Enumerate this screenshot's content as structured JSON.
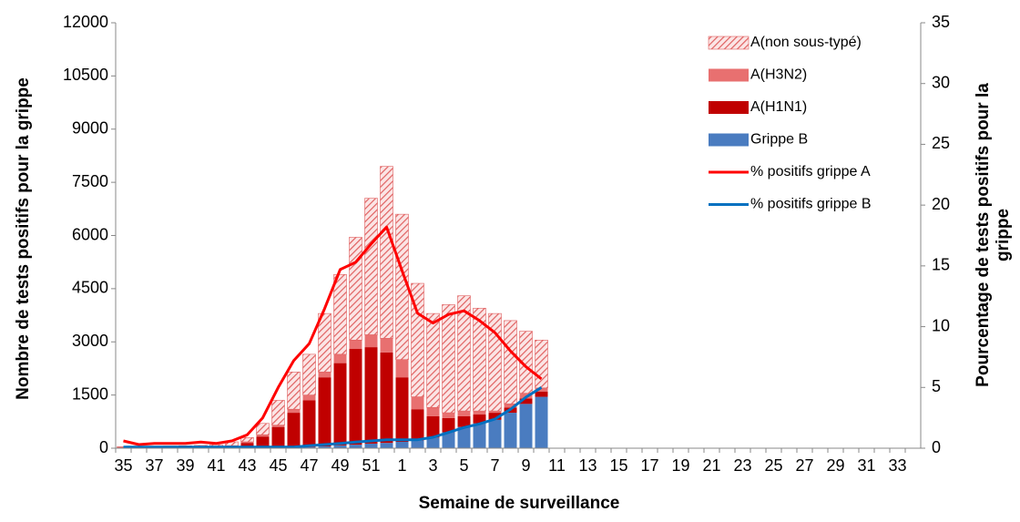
{
  "chart_data": {
    "type": "bar",
    "xlabel": "Semaine de surveillance",
    "ylabel": "Nombre de tests positifs pour la grippe",
    "y2label": [
      "Pourcentage de tests positifs pour la",
      "grippe"
    ],
    "categories": [
      "35",
      null,
      "37",
      null,
      "39",
      null,
      "41",
      null,
      "43",
      null,
      "45",
      null,
      "47",
      null,
      "49",
      null,
      "51",
      null,
      "1",
      null,
      "3",
      null,
      "5",
      null,
      "7",
      null,
      "9",
      null,
      "11",
      null,
      "13",
      null,
      "15",
      null,
      "17",
      null,
      "19",
      null,
      "21",
      null,
      "23",
      null,
      "25",
      null,
      "27",
      null,
      "29",
      null,
      "31",
      null,
      "33",
      null
    ],
    "ylim": [
      0,
      12000
    ],
    "yticks": [
      0,
      1500,
      3000,
      4500,
      6000,
      7500,
      9000,
      10500,
      12000
    ],
    "y2lim": [
      0,
      35
    ],
    "y2ticks": [
      0,
      5,
      10,
      15,
      20,
      25,
      30,
      35
    ],
    "legend_position": "upper right",
    "series": [
      {
        "name": "Grippe B",
        "type": "bar",
        "color": "#4a7cc0",
        "values": [
          10,
          10,
          10,
          10,
          10,
          10,
          10,
          15,
          20,
          20,
          20,
          20,
          30,
          50,
          80,
          100,
          130,
          150,
          180,
          220,
          300,
          450,
          600,
          700,
          800,
          1000,
          1250,
          1450,
          null,
          null,
          null,
          null,
          null,
          null,
          null,
          null,
          null,
          null,
          null,
          null,
          null,
          null,
          null,
          null,
          null,
          null,
          null,
          null,
          null,
          null,
          null,
          null
        ]
      },
      {
        "name": "A(H1N1)",
        "type": "bar",
        "color": "#c00000",
        "values": [
          10,
          10,
          10,
          15,
          20,
          20,
          30,
          45,
          130,
          310,
          580,
          980,
          1320,
          1950,
          2320,
          2700,
          2720,
          2550,
          1820,
          880,
          600,
          400,
          300,
          250,
          200,
          150,
          150,
          150,
          null,
          null,
          null,
          null,
          null,
          null,
          null,
          null,
          null,
          null,
          null,
          null,
          null,
          null,
          null,
          null,
          null,
          null,
          null,
          null,
          null,
          null,
          null,
          null
        ]
      },
      {
        "name": "A(H3N2)",
        "type": "bar",
        "color": "#e87070",
        "values": [
          5,
          5,
          5,
          5,
          5,
          5,
          5,
          10,
          30,
          50,
          50,
          100,
          150,
          150,
          250,
          250,
          350,
          400,
          500,
          350,
          250,
          150,
          150,
          100,
          50,
          100,
          150,
          100,
          null,
          null,
          null,
          null,
          null,
          null,
          null,
          null,
          null,
          null,
          null,
          null,
          null,
          null,
          null,
          null,
          null,
          null,
          null,
          null,
          null,
          null,
          null,
          null
        ]
      },
      {
        "name": "A(non sous-typé)",
        "type": "bar",
        "color": "#e06060",
        "hatch": true,
        "values": [
          15,
          15,
          25,
          30,
          35,
          45,
          55,
          110,
          120,
          320,
          700,
          1050,
          1150,
          1650,
          2250,
          2900,
          3850,
          4850,
          4100,
          3200,
          2650,
          3050,
          3250,
          2900,
          2750,
          2350,
          1750,
          1350,
          null,
          null,
          null,
          null,
          null,
          null,
          null,
          null,
          null,
          null,
          null,
          null,
          null,
          null,
          null,
          null,
          null,
          null,
          null,
          null,
          null,
          null,
          null,
          null
        ]
      },
      {
        "name": "% positifs grippe A",
        "type": "line",
        "axis": "y2",
        "color": "#ff0000",
        "values": [
          0.6,
          0.3,
          0.4,
          0.4,
          0.4,
          0.5,
          0.4,
          0.6,
          1.1,
          2.5,
          5,
          7.2,
          8.6,
          11.5,
          14.7,
          15.3,
          16.8,
          18.2,
          14.6,
          11.1,
          10.3,
          11,
          11.3,
          10.5,
          9.5,
          8,
          6.7,
          5.7,
          null,
          null,
          null,
          null,
          null,
          null,
          null,
          null,
          null,
          null,
          null,
          null,
          null,
          null,
          null,
          null,
          null,
          null,
          null,
          null,
          null,
          null,
          null,
          null
        ]
      },
      {
        "name": "% positifs grippe B",
        "type": "line",
        "axis": "y2",
        "color": "#0070c0",
        "values": [
          0.1,
          0.1,
          0.1,
          0.1,
          0.1,
          0.1,
          0.1,
          0.1,
          0.1,
          0.1,
          0.1,
          0.1,
          0.2,
          0.3,
          0.4,
          0.5,
          0.6,
          0.7,
          0.7,
          0.7,
          0.9,
          1.3,
          1.7,
          2,
          2.4,
          3.2,
          4.2,
          5,
          null,
          null,
          null,
          null,
          null,
          null,
          null,
          null,
          null,
          null,
          null,
          null,
          null,
          null,
          null,
          null,
          null,
          null,
          null,
          null,
          null,
          null,
          null,
          null
        ]
      }
    ]
  }
}
